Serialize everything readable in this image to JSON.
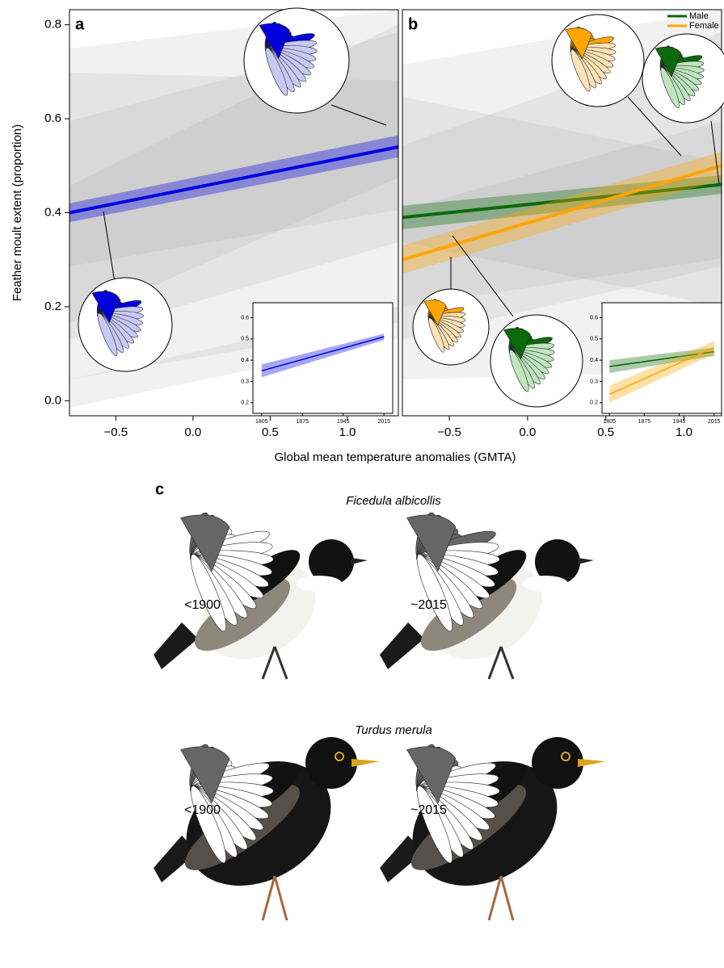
{
  "chart_data": [
    {
      "type": "line",
      "panel_label": "a",
      "ylabel": "Feather moult extent (proportion)",
      "xlabel": "Global mean temperature anomalies (GMTA)",
      "x": [
        -0.8,
        1.33
      ],
      "xlim": [
        -0.8,
        1.33
      ],
      "ylim": [
        -0.032,
        0.832
      ],
      "xticks": [
        {
          "value": -0.5,
          "label": "−0.5"
        },
        {
          "value": 0,
          "label": "0.0"
        },
        {
          "value": 0.5,
          "label": "0.5"
        },
        {
          "value": 1,
          "label": "1.0"
        }
      ],
      "yticks": [
        {
          "value": 0,
          "label": "0.0"
        },
        0.2,
        0.4,
        0.6,
        0.8
      ],
      "series": [
        {
          "color": "#0000e0",
          "values": [
            0.4,
            0.54
          ],
          "lower": [
            0.38,
            0.518
          ],
          "upper": [
            0.42,
            0.565
          ]
        }
      ]
    },
    {
      "type": "line",
      "x": [
        1805,
        2015
      ],
      "xlim": [
        1790,
        2030
      ],
      "ylim": [
        0.15,
        0.67
      ],
      "xticks": [
        1805,
        1875,
        1945,
        2015
      ],
      "yticks": [
        0.2,
        0.3,
        0.4,
        0.5,
        0.6
      ],
      "series": [
        {
          "color": "#0000e0",
          "values": [
            0.35,
            0.51
          ],
          "lower": [
            0.32,
            0.495
          ],
          "upper": [
            0.38,
            0.525
          ]
        }
      ]
    },
    {
      "type": "line",
      "panel_label": "b",
      "x": [
        -0.8,
        1.24
      ],
      "xlim": [
        -0.8,
        1.24
      ],
      "ylim": [
        -0.032,
        0.832
      ],
      "xticks": [
        {
          "value": -0.5,
          "label": "−0.5"
        },
        {
          "value": 0,
          "label": "0.0"
        },
        {
          "value": 0.5,
          "label": "0.5"
        },
        {
          "value": 1,
          "label": "1.0"
        }
      ],
      "series": [
        {
          "name": "Male",
          "color": "#0a6a0a",
          "values": [
            0.39,
            0.46
          ],
          "lower": [
            0.365,
            0.44
          ],
          "upper": [
            0.415,
            0.48
          ]
        },
        {
          "name": "Female",
          "color": "#ffa500",
          "values": [
            0.3,
            0.5
          ],
          "lower": [
            0.27,
            0.47
          ],
          "upper": [
            0.33,
            0.53
          ]
        }
      ]
    },
    {
      "type": "line",
      "x": [
        1805,
        2015
      ],
      "xlim": [
        1790,
        2030
      ],
      "ylim": [
        0.15,
        0.67
      ],
      "xticks": [
        1805,
        1875,
        1945,
        2015
      ],
      "yticks": [
        0.2,
        0.3,
        0.4,
        0.5,
        0.6
      ],
      "series": [
        {
          "color": "#0a6a0a",
          "values": [
            0.37,
            0.44
          ],
          "lower": [
            0.34,
            0.42
          ],
          "upper": [
            0.4,
            0.46
          ]
        },
        {
          "color": "#ffa500",
          "values": [
            0.24,
            0.46
          ],
          "lower": [
            0.2,
            0.43
          ],
          "upper": [
            0.28,
            0.49
          ]
        }
      ]
    }
  ],
  "panel_c": {
    "label": "c",
    "species": [
      {
        "name": "Ficedula albicollis",
        "periods": [
          "<1900",
          "~2015"
        ]
      },
      {
        "name": "Turdus merula",
        "periods": [
          "<1900",
          "~2015"
        ]
      }
    ]
  }
}
